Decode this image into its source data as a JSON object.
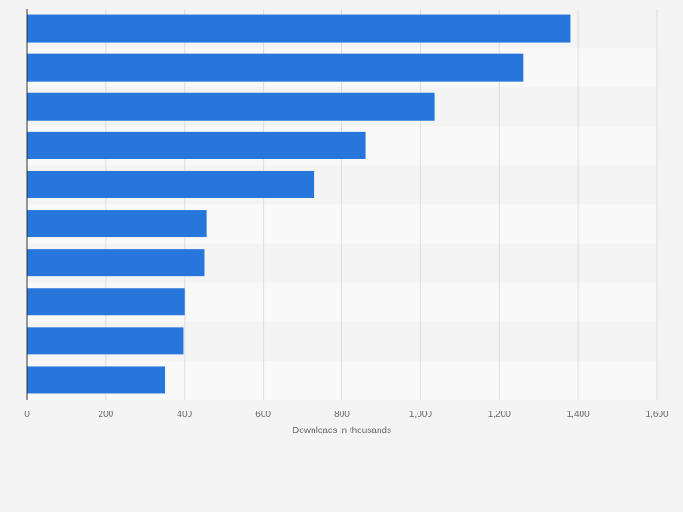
{
  "chart_data": {
    "type": "bar",
    "orientation": "horizontal",
    "title": "",
    "xlabel": "Downloads in thousands",
    "ylabel": "",
    "categories": [
      "",
      "",
      "",
      "",
      "",
      "",
      "",
      "",
      "",
      ""
    ],
    "values": [
      1380,
      1260,
      1035,
      860,
      730,
      455,
      450,
      400,
      397,
      350
    ],
    "xlim": [
      0,
      1600
    ],
    "ticks": [
      0,
      200,
      400,
      600,
      800,
      1000,
      1200,
      1400,
      1600
    ],
    "tick_labels": [
      "0",
      "200",
      "400",
      "600",
      "800",
      "1,000",
      "1,200",
      "1,400",
      "1,600"
    ],
    "grid": true,
    "colors": {
      "bar": "#2776dc",
      "background": "#f4f4f4",
      "band_dark": "#f4f4f4",
      "band_light": "#f9f9f9",
      "grid": "#dddddd",
      "axis": "#333333",
      "tick_text": "#666666"
    }
  }
}
